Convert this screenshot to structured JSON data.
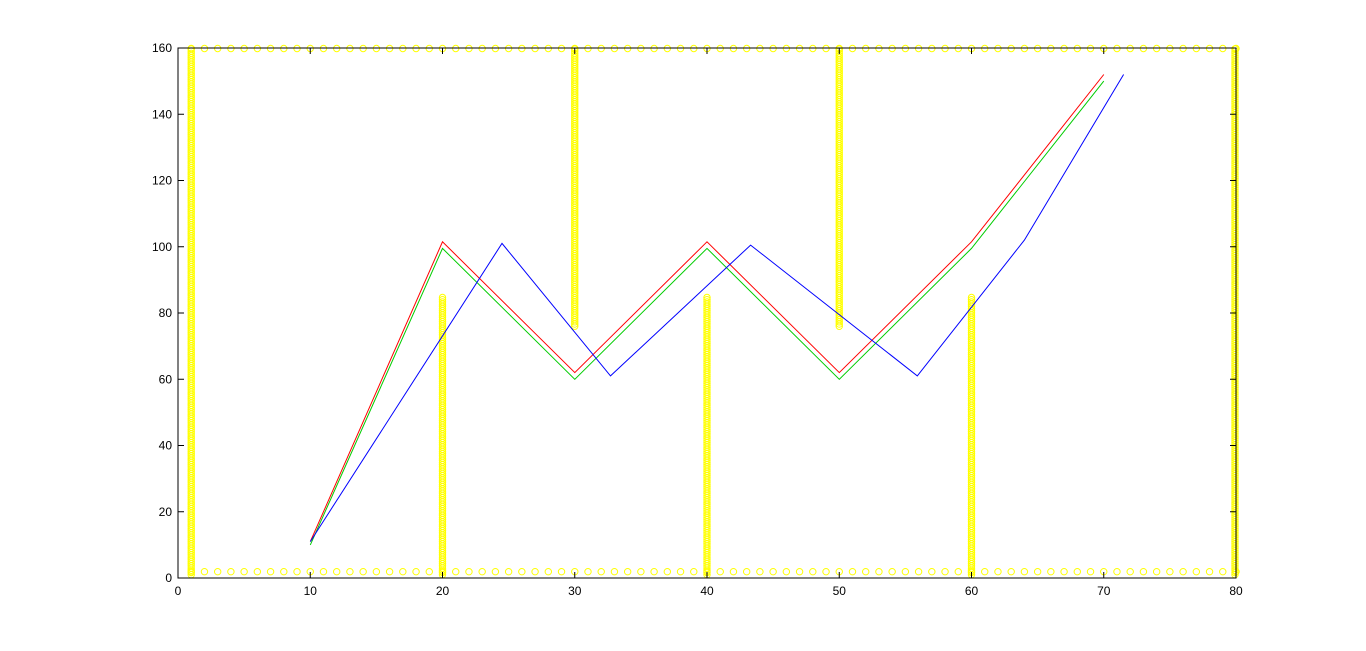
{
  "chart_data": {
    "type": "line",
    "title": "",
    "xlabel": "",
    "ylabel": "",
    "xlim": [
      0,
      80
    ],
    "ylim": [
      0,
      160
    ],
    "xticks": [
      0,
      10,
      20,
      30,
      40,
      50,
      60,
      70,
      80
    ],
    "yticks": [
      0,
      20,
      40,
      60,
      80,
      100,
      120,
      140,
      160
    ],
    "xtick_labels": [
      "0",
      "10",
      "20",
      "30",
      "40",
      "50",
      "60",
      "70",
      "80"
    ],
    "ytick_labels": [
      "0",
      "20",
      "40",
      "60",
      "80",
      "100",
      "120",
      "140",
      "160"
    ],
    "grid": false,
    "box": true,
    "series": [
      {
        "color": "#ff0000",
        "x": [
          10,
          20,
          30,
          40,
          50,
          60,
          70
        ],
        "y": [
          11,
          101.5,
          62,
          101.5,
          62,
          101.5,
          152
        ]
      },
      {
        "color": "#00cc00",
        "x": [
          10,
          20,
          30,
          40,
          50,
          60,
          70
        ],
        "y": [
          10,
          99.5,
          60,
          99.5,
          60,
          99.5,
          150
        ]
      },
      {
        "color": "#0000ff",
        "x": [
          10,
          24.5,
          32.7,
          43.3,
          55.9,
          64,
          71.5
        ],
        "y": [
          11,
          101,
          61,
          100.5,
          61,
          102,
          152
        ]
      }
    ],
    "markers": {
      "color": "#ffff00",
      "shape": "circle",
      "boundary": {
        "bottom_y": 1,
        "top_y": 160,
        "left_x": 1,
        "right_x": 80,
        "x_from": 1,
        "x_to": 80,
        "y_from": 1,
        "y_to": 160
      },
      "walls": [
        {
          "x": 20,
          "y_from": 1,
          "y_to": 85
        },
        {
          "x": 30,
          "y_from": 76,
          "y_to": 160
        },
        {
          "x": 40,
          "y_from": 1,
          "y_to": 85
        },
        {
          "x": 50,
          "y_from": 76,
          "y_to": 160
        },
        {
          "x": 60,
          "y_from": 1,
          "y_to": 85
        }
      ]
    }
  }
}
